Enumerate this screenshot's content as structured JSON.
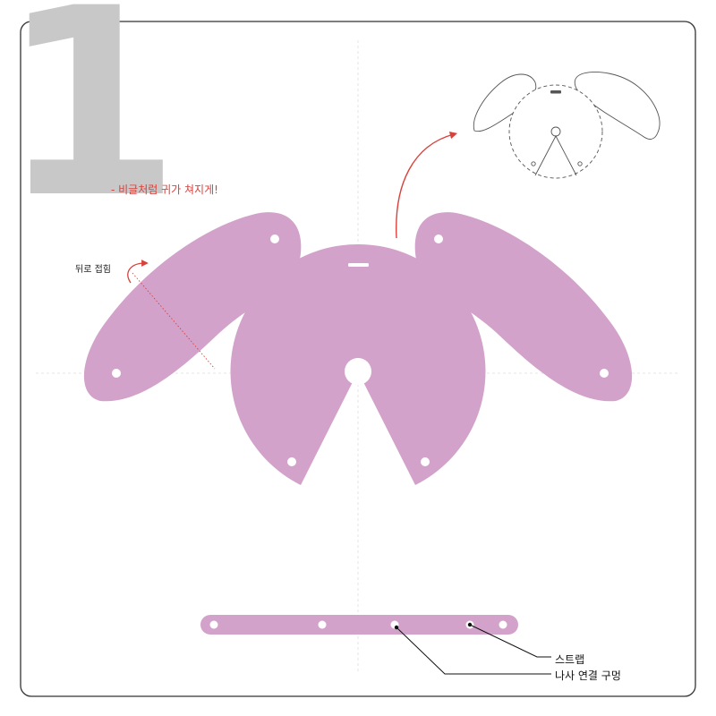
{
  "step": {
    "number": "1"
  },
  "notes": {
    "red_note": "- 비글처럼 귀가 쳐지게!",
    "fold_note": "뒤로 접힘"
  },
  "callouts": {
    "strap": "스트랩",
    "screw_hole": "나사 연결 구멍"
  },
  "colors": {
    "piece_fill": "#d2a2ca",
    "accent_red": "#d9413b",
    "step_number": "#c8c8c8",
    "frame": "#333333",
    "guide": "#e3e3e3"
  }
}
